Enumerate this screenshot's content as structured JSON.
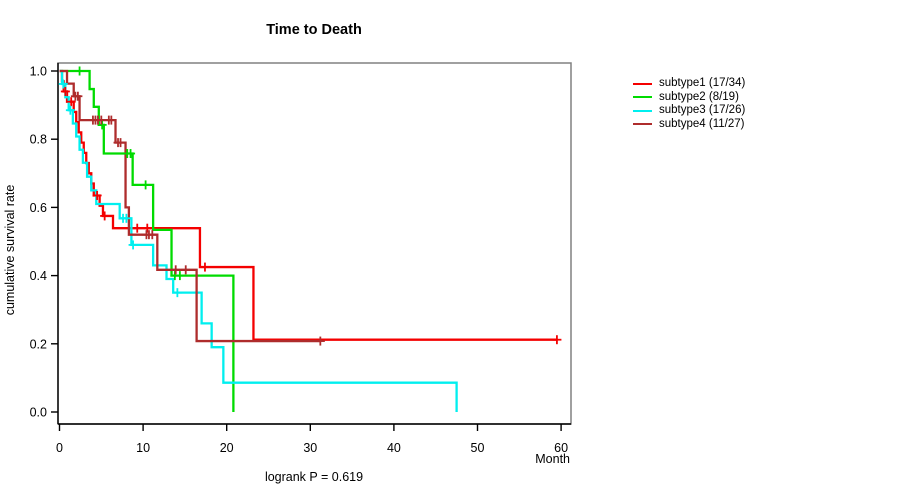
{
  "title": "Time to Death",
  "axes": {
    "x_label": "Month",
    "y_label": "cumulative survival rate"
  },
  "annotation": "logrank P = 0.619",
  "legend": {
    "items": [
      {
        "label": "subtype1 (17/34)",
        "color": "#f40000"
      },
      {
        "label": "subtype2 (8/19)",
        "color": "#00db00"
      },
      {
        "label": "subtype3 (17/26)",
        "color": "#00efef"
      },
      {
        "label": "subtype4 (11/27)",
        "color": "#ae2c2c"
      }
    ]
  },
  "chart_data": {
    "type": "line",
    "subtype": "kaplan-meier-step",
    "title": "Time to Death",
    "xlabel": "Month",
    "ylabel": "cumulative survival rate",
    "annotation": "logrank P = 0.619",
    "xlim": [
      0,
      60
    ],
    "ylim": [
      0.0,
      1.0
    ],
    "x_ticks": [
      0,
      10,
      20,
      30,
      40,
      50,
      60
    ],
    "y_ticks": [
      0.0,
      0.2,
      0.4,
      0.6,
      0.8,
      1.0
    ],
    "grid": false,
    "legend_position": "right-outside",
    "frame_color": "#808080",
    "axis_color": "#000000",
    "series": [
      {
        "name": "subtype1 (17/34)",
        "color": "#f40000",
        "end": 59.5,
        "steps": [
          [
            0,
            1.0
          ],
          [
            0.3,
            0.97
          ],
          [
            0.5,
            0.94
          ],
          [
            0.9,
            0.91
          ],
          [
            1.7,
            0.88
          ],
          [
            2.0,
            0.85
          ],
          [
            2.3,
            0.82
          ],
          [
            2.6,
            0.79
          ],
          [
            2.9,
            0.76
          ],
          [
            3.2,
            0.73
          ],
          [
            3.5,
            0.7
          ],
          [
            3.8,
            0.67
          ],
          [
            4.1,
            0.635
          ],
          [
            4.8,
            0.605
          ],
          [
            5.2,
            0.575
          ],
          [
            6.4,
            0.539
          ],
          [
            16.8,
            0.425
          ],
          [
            23.2,
            0.212
          ]
        ],
        "censors": [
          [
            0.7,
            0.94
          ],
          [
            1.4,
            0.91
          ],
          [
            4.5,
            0.635
          ],
          [
            5.4,
            0.575
          ],
          [
            9.3,
            0.539
          ],
          [
            10.5,
            0.539
          ],
          [
            17.4,
            0.425
          ],
          [
            59.5,
            0.212
          ]
        ]
      },
      {
        "name": "subtype2 (8/19)",
        "color": "#00db00",
        "end": 20.8,
        "steps": [
          [
            0,
            1.0
          ],
          [
            3.6,
            0.947
          ],
          [
            4.1,
            0.895
          ],
          [
            4.7,
            0.842
          ],
          [
            5.3,
            0.758
          ],
          [
            8.75,
            0.666
          ],
          [
            11.2,
            0.534
          ],
          [
            13.4,
            0.4
          ],
          [
            20.8,
            0.0
          ]
        ],
        "censors": [
          [
            2.4,
            1.0
          ],
          [
            5.1,
            0.842
          ],
          [
            8.1,
            0.758
          ],
          [
            8.5,
            0.758
          ],
          [
            10.3,
            0.666
          ],
          [
            13.8,
            0.4
          ],
          [
            14.4,
            0.4
          ]
        ]
      },
      {
        "name": "subtype3 (17/26)",
        "color": "#00efef",
        "end": 47.5,
        "steps": [
          [
            0,
            1.0
          ],
          [
            0.3,
            0.962
          ],
          [
            0.7,
            0.923
          ],
          [
            1.1,
            0.885
          ],
          [
            1.6,
            0.846
          ],
          [
            2.0,
            0.808
          ],
          [
            2.4,
            0.769
          ],
          [
            2.8,
            0.731
          ],
          [
            3.3,
            0.69
          ],
          [
            3.8,
            0.65
          ],
          [
            4.4,
            0.61
          ],
          [
            7.2,
            0.568
          ],
          [
            8.6,
            0.49
          ],
          [
            11.2,
            0.43
          ],
          [
            12.8,
            0.39
          ],
          [
            13.6,
            0.35
          ],
          [
            17.0,
            0.26
          ],
          [
            18.2,
            0.19
          ],
          [
            19.6,
            0.086
          ],
          [
            47.5,
            0.0
          ]
        ],
        "censors": [
          [
            0.45,
            0.962
          ],
          [
            1.3,
            0.885
          ],
          [
            7.6,
            0.568
          ],
          [
            8.0,
            0.568
          ],
          [
            8.8,
            0.49
          ],
          [
            14.1,
            0.35
          ]
        ]
      },
      {
        "name": "subtype4 (11/27)",
        "color": "#ae2c2c",
        "end": 31.2,
        "steps": [
          [
            0,
            1.0
          ],
          [
            0.9,
            0.963
          ],
          [
            1.7,
            0.926
          ],
          [
            2.4,
            0.856
          ],
          [
            6.7,
            0.79
          ],
          [
            7.9,
            0.6
          ],
          [
            8.3,
            0.52
          ],
          [
            11.7,
            0.417
          ],
          [
            16.4,
            0.208
          ]
        ],
        "censors": [
          [
            1.9,
            0.926
          ],
          [
            2.2,
            0.926
          ],
          [
            4.0,
            0.856
          ],
          [
            4.3,
            0.856
          ],
          [
            4.6,
            0.856
          ],
          [
            5.0,
            0.856
          ],
          [
            5.9,
            0.856
          ],
          [
            6.2,
            0.856
          ],
          [
            7.0,
            0.79
          ],
          [
            7.3,
            0.79
          ],
          [
            10.4,
            0.52
          ],
          [
            10.7,
            0.52
          ],
          [
            11.1,
            0.52
          ],
          [
            13.9,
            0.417
          ],
          [
            15.1,
            0.417
          ],
          [
            31.2,
            0.208
          ]
        ]
      }
    ]
  }
}
